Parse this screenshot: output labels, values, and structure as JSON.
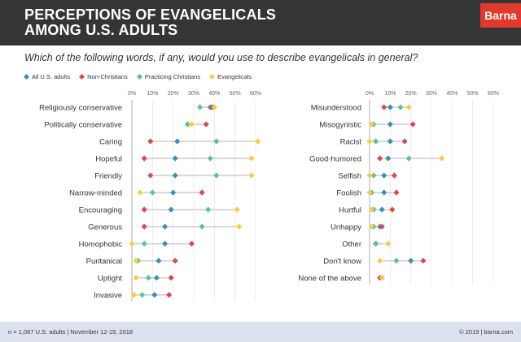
{
  "header": {
    "title": "PERCEPTIONS OF EVANGELICALS\nAMONG U.S. ADULTS",
    "brand": "Barna"
  },
  "subtitle": "Which of the following words, if any, would you use to describe evangelicals in general?",
  "footer": {
    "note": "n = 1,067 U.S. adults | November 12-19, 2018",
    "copyright": "© 2019 | barna.com"
  },
  "colors": {
    "all": "#3c8fb5",
    "non": "#d9494d",
    "prac": "#5cc29a",
    "evan": "#f7cc43"
  },
  "chart_data": [
    {
      "type": "scatter",
      "ticks": [
        "0%",
        "10%",
        "20%",
        "30%",
        "40%",
        "50%",
        "60%"
      ],
      "xlim": [
        0,
        60
      ],
      "series_names": [
        "All U.S. adults",
        "Non-Christians",
        "Practicing Christians",
        "Evangelicals"
      ],
      "categories": [
        "Religiously conservative",
        "Politically conservative",
        "Caring",
        "Hopeful",
        "Friendly",
        "Narrow-minded",
        "Encouraging",
        "Generous",
        "Homophobic",
        "Puritanical",
        "Uptight",
        "Invasive"
      ],
      "series": [
        {
          "name": "All U.S. adults",
          "values": [
            38,
            27,
            22,
            21,
            21,
            20,
            19,
            16,
            16,
            13,
            12,
            11
          ]
        },
        {
          "name": "Non-Christians",
          "values": [
            39,
            36,
            9,
            6,
            9,
            34,
            6,
            6,
            29,
            21,
            19,
            18
          ]
        },
        {
          "name": "Practicing Christians",
          "values": [
            33,
            27,
            41,
            38,
            41,
            10,
            37,
            34,
            6,
            3,
            8,
            5
          ]
        },
        {
          "name": "Evangelicals",
          "values": [
            40,
            29,
            61,
            58,
            58,
            4,
            51,
            52,
            0,
            2,
            2,
            1
          ]
        }
      ]
    },
    {
      "type": "scatter",
      "ticks": [
        "0%",
        "10%",
        "20%",
        "30%",
        "40%",
        "50%",
        "60%"
      ],
      "xlim": [
        0,
        60
      ],
      "series_names": [
        "All U.S. adults",
        "Non-Christians",
        "Practicing Christians",
        "Evangelicals"
      ],
      "categories": [
        "Misunderstood",
        "Misogynistic",
        "Racist",
        "Good-humored",
        "Selfish",
        "Foolish",
        "Hurtful",
        "Unhappy",
        "Other",
        "Don't know",
        "None of the above"
      ],
      "series": [
        {
          "name": "All U.S. adults",
          "values": [
            10,
            10,
            10,
            9,
            7,
            7,
            6,
            5,
            3,
            20,
            6
          ]
        },
        {
          "name": "Non-Christians",
          "values": [
            7,
            21,
            17,
            5,
            12,
            13,
            11,
            6,
            3,
            26,
            5
          ]
        },
        {
          "name": "Practicing Christians",
          "values": [
            15,
            2,
            3,
            19,
            2,
            1,
            2,
            2,
            3,
            13,
            6
          ]
        },
        {
          "name": "Evangelicals",
          "values": [
            19,
            1,
            0,
            35,
            0,
            0,
            1,
            1,
            9,
            5,
            6
          ]
        }
      ]
    }
  ]
}
